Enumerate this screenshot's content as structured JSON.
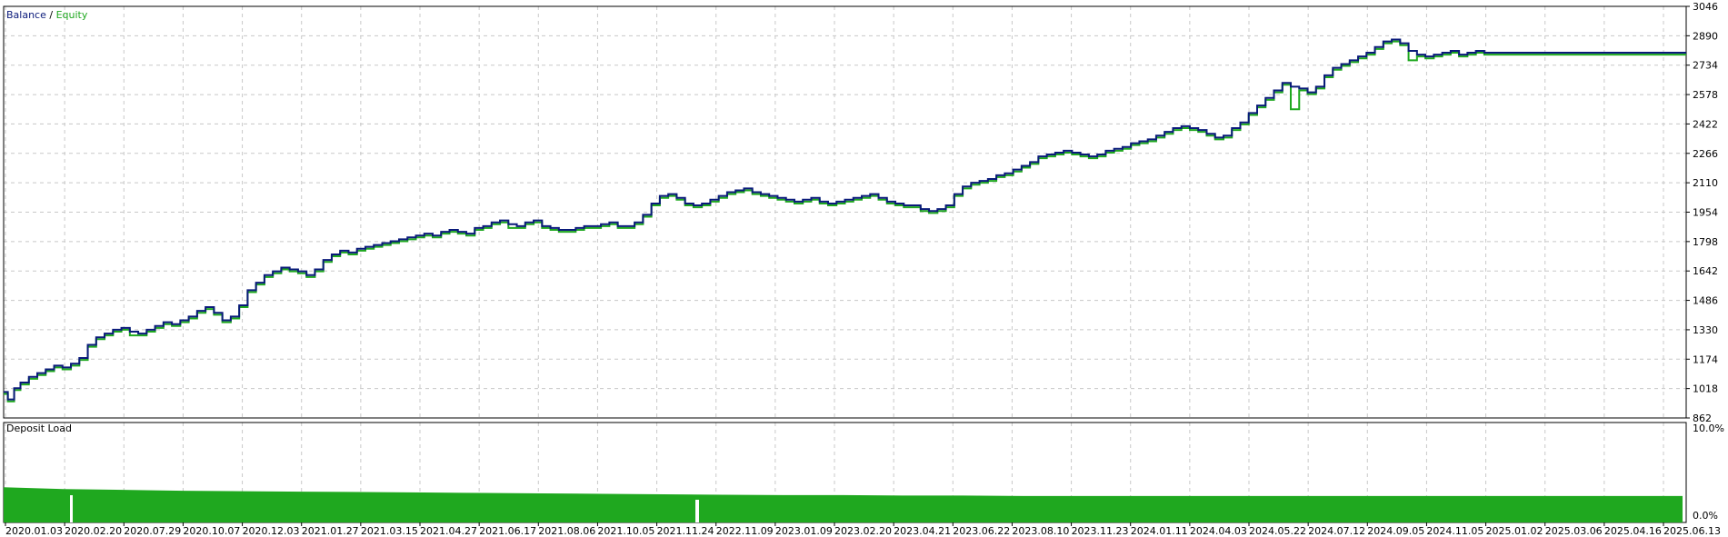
{
  "chart_data": [
    {
      "type": "line",
      "legend": {
        "balance_label": "Balance",
        "separator": " / ",
        "equity_label": "Equity"
      },
      "series": [
        {
          "name": "Balance",
          "color": "#0a1a7a"
        },
        {
          "name": "Equity",
          "color": "#1fa81f"
        }
      ],
      "ylim": [
        862,
        3046
      ],
      "y_ticks": [
        "3046",
        "2890",
        "2734",
        "2578",
        "2422",
        "2266",
        "2110",
        "1954",
        "1798",
        "1642",
        "1486",
        "1330",
        "1174",
        "1018",
        "862"
      ],
      "x": [
        0,
        2,
        5,
        8,
        12,
        16,
        20,
        24,
        28,
        32,
        36,
        40,
        44,
        48,
        52,
        56,
        60,
        64,
        68,
        72,
        76,
        80,
        84,
        88,
        92,
        96,
        100,
        104,
        108,
        112,
        116,
        120,
        124,
        128,
        132,
        136,
        140,
        144,
        148,
        152,
        156,
        160,
        164,
        168,
        172,
        176,
        180,
        184,
        188,
        192,
        196,
        200,
        204,
        208,
        212,
        216,
        220,
        224,
        228,
        232,
        236,
        240,
        244,
        248,
        252,
        256,
        260,
        264,
        268,
        272,
        276,
        280,
        284,
        288,
        292,
        296,
        300,
        304,
        308,
        312,
        316,
        320,
        324,
        328,
        332,
        336,
        340,
        344,
        348,
        352,
        356,
        360,
        364,
        368,
        372,
        376,
        380,
        384,
        388,
        392,
        396,
        400,
        404,
        408,
        412,
        416,
        420,
        424,
        428,
        432,
        436,
        440,
        444,
        448,
        452,
        456,
        460,
        464,
        468,
        472,
        476,
        480,
        484,
        488,
        492,
        496,
        500,
        504,
        508,
        512,
        516,
        520,
        524,
        528,
        532,
        536,
        540,
        544,
        548,
        552,
        556,
        560,
        564,
        568,
        572,
        576,
        580,
        584,
        588,
        592,
        596,
        600,
        604,
        608,
        612,
        616,
        620,
        624,
        628,
        632,
        636,
        640,
        644,
        648,
        652,
        656,
        660,
        664,
        668,
        672,
        676,
        680,
        684,
        688,
        692,
        696,
        700,
        704,
        708,
        712,
        716,
        720,
        724,
        728,
        732,
        736,
        740,
        744,
        748,
        752,
        756,
        760,
        764,
        768,
        772,
        776,
        780,
        784,
        788,
        792,
        796,
        800
      ],
      "balance": [
        1000,
        960,
        1020,
        1050,
        1080,
        1100,
        1120,
        1140,
        1130,
        1150,
        1180,
        1250,
        1290,
        1310,
        1330,
        1340,
        1320,
        1310,
        1330,
        1350,
        1370,
        1360,
        1380,
        1400,
        1430,
        1450,
        1420,
        1380,
        1400,
        1460,
        1540,
        1580,
        1620,
        1640,
        1660,
        1650,
        1640,
        1620,
        1650,
        1700,
        1730,
        1750,
        1740,
        1760,
        1770,
        1780,
        1790,
        1800,
        1810,
        1820,
        1830,
        1840,
        1830,
        1850,
        1860,
        1850,
        1840,
        1870,
        1880,
        1900,
        1910,
        1890,
        1880,
        1900,
        1910,
        1880,
        1870,
        1860,
        1860,
        1870,
        1880,
        1880,
        1890,
        1900,
        1880,
        1880,
        1900,
        1940,
        2000,
        2040,
        2050,
        2030,
        2000,
        1990,
        2000,
        2020,
        2040,
        2060,
        2070,
        2080,
        2060,
        2050,
        2040,
        2030,
        2020,
        2010,
        2020,
        2030,
        2010,
        2000,
        2010,
        2020,
        2030,
        2040,
        2050,
        2030,
        2010,
        2000,
        1990,
        1990,
        1970,
        1960,
        1970,
        1990,
        2050,
        2090,
        2110,
        2120,
        2130,
        2150,
        2160,
        2180,
        2200,
        2220,
        2250,
        2260,
        2270,
        2280,
        2270,
        2260,
        2250,
        2260,
        2280,
        2290,
        2300,
        2320,
        2330,
        2340,
        2360,
        2380,
        2400,
        2410,
        2400,
        2390,
        2370,
        2350,
        2360,
        2400,
        2430,
        2480,
        2520,
        2560,
        2600,
        2640,
        2620,
        2610,
        2590,
        2620,
        2680,
        2720,
        2740,
        2760,
        2780,
        2800,
        2830,
        2860,
        2870,
        2850,
        2810,
        2790,
        2780,
        2790,
        2800,
        2810,
        2790,
        2800,
        2810,
        2800,
        2800,
        2800,
        2800,
        2800,
        2800,
        2800,
        2800,
        2800,
        2800,
        2800,
        2800,
        2800,
        2800,
        2800,
        2800,
        2800,
        2800,
        2800,
        2800,
        2800,
        2800,
        2800,
        2800,
        2800,
        2800
      ],
      "equity": [
        990,
        950,
        1010,
        1040,
        1070,
        1090,
        1110,
        1130,
        1120,
        1140,
        1170,
        1240,
        1280,
        1300,
        1320,
        1330,
        1300,
        1300,
        1320,
        1340,
        1360,
        1350,
        1370,
        1390,
        1420,
        1440,
        1410,
        1370,
        1390,
        1450,
        1530,
        1570,
        1610,
        1630,
        1650,
        1640,
        1630,
        1610,
        1640,
        1690,
        1720,
        1740,
        1730,
        1750,
        1760,
        1770,
        1780,
        1790,
        1800,
        1810,
        1820,
        1830,
        1820,
        1840,
        1850,
        1840,
        1830,
        1860,
        1870,
        1890,
        1900,
        1870,
        1870,
        1890,
        1900,
        1870,
        1860,
        1850,
        1850,
        1860,
        1870,
        1870,
        1880,
        1890,
        1870,
        1870,
        1890,
        1930,
        1990,
        2030,
        2040,
        2020,
        1990,
        1980,
        1990,
        2010,
        2030,
        2050,
        2060,
        2070,
        2050,
        2040,
        2030,
        2020,
        2010,
        2000,
        2010,
        2020,
        2000,
        1990,
        2000,
        2010,
        2020,
        2030,
        2040,
        2020,
        2000,
        1990,
        1980,
        1980,
        1960,
        1950,
        1960,
        1980,
        2040,
        2080,
        2100,
        2110,
        2120,
        2140,
        2150,
        2170,
        2190,
        2210,
        2240,
        2250,
        2260,
        2270,
        2260,
        2250,
        2240,
        2250,
        2270,
        2280,
        2290,
        2310,
        2320,
        2330,
        2350,
        2370,
        2390,
        2400,
        2390,
        2380,
        2360,
        2340,
        2350,
        2390,
        2420,
        2470,
        2510,
        2550,
        2590,
        2630,
        2500,
        2600,
        2580,
        2610,
        2670,
        2710,
        2730,
        2750,
        2770,
        2790,
        2820,
        2850,
        2860,
        2840,
        2760,
        2780,
        2770,
        2780,
        2790,
        2800,
        2780,
        2790,
        2800,
        2790,
        2790,
        2790,
        2790,
        2790,
        2790,
        2790,
        2790,
        2790,
        2790,
        2790,
        2790,
        2790,
        2790,
        2790,
        2790,
        2790,
        2790,
        2790,
        2790,
        2790,
        2790,
        2790,
        2790,
        2790,
        2790,
        2790
      ]
    },
    {
      "type": "area",
      "title": "Deposit Load",
      "color": "#1fa81f",
      "ylim": [
        0,
        10
      ],
      "y_ticks": [
        "10.0%",
        "0.0%"
      ],
      "x_ticks": [
        "2020.01.03",
        "2020.02.20",
        "2020.07.29",
        "2020.10.07",
        "2020.12.03",
        "2021.01.27",
        "2021.03.15",
        "2021.04.27",
        "2021.06.17",
        "2021.08.06",
        "2021.10.05",
        "2021.11.24",
        "2022.11.09",
        "2023.01.09",
        "2023.02.20",
        "2023.04.21",
        "2023.06.22",
        "2023.08.10",
        "2023.11.23",
        "2024.01.11",
        "2024.04.03",
        "2024.05.22",
        "2024.07.12",
        "2024.09.05",
        "2024.11.05",
        "2025.01.02",
        "2025.03.06",
        "2025.04.16",
        "2025.06.13"
      ],
      "values": [
        3.2,
        3.0,
        2.9,
        2.8,
        2.75,
        2.7,
        2.65,
        2.6,
        2.55,
        2.5,
        2.45,
        2.4,
        2.35,
        2.3,
        2.3,
        2.25,
        2.25,
        2.2,
        2.2,
        2.2,
        2.2,
        2.2,
        2.2,
        2.2,
        2.2,
        2.2,
        2.2,
        2.2,
        2.2
      ]
    }
  ]
}
